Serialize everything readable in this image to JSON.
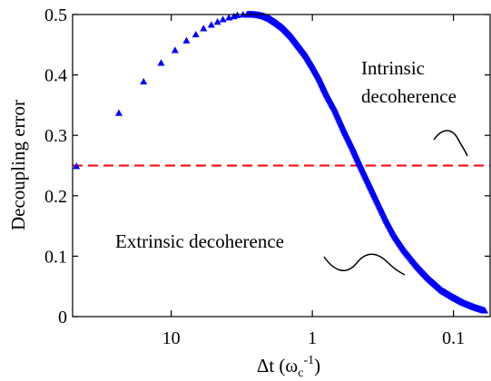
{
  "chart_data": {
    "type": "scatter",
    "xlabel": "Δt (ω",
    "xlabel_sub": "c",
    "xlabel_sup": "-1",
    "xlabel_close": ")",
    "ylabel": "Decoupling error",
    "x_scale": "log-reversed",
    "xlim": [
      50,
      0.055
    ],
    "ylim": [
      0,
      0.5
    ],
    "x_ticks": [
      {
        "value": 10,
        "label": "10"
      },
      {
        "value": 1,
        "label": "1"
      },
      {
        "value": 0.1,
        "label": "0.1"
      }
    ],
    "y_ticks": [
      {
        "value": 0,
        "label": "0"
      },
      {
        "value": 0.1,
        "label": "0.1"
      },
      {
        "value": 0.2,
        "label": "0.2"
      },
      {
        "value": 0.3,
        "label": "0.3"
      },
      {
        "value": 0.4,
        "label": "0.4"
      },
      {
        "value": 0.5,
        "label": "0.5"
      }
    ],
    "series": [
      {
        "marker": "triangle",
        "color": "#0000ff",
        "x": [
          47,
          23.5,
          15.7,
          11.8,
          9.4,
          7.8,
          6.7,
          5.9,
          5.2,
          4.7,
          4.3,
          3.9,
          3.6,
          3.4,
          3.1,
          2.9,
          2.75,
          2.6,
          2.4,
          2.2,
          2.0,
          1.8,
          1.6,
          1.4,
          1.25,
          1.1,
          1.0,
          0.9,
          0.8,
          0.7,
          0.6,
          0.52,
          0.46,
          0.4,
          0.35,
          0.3,
          0.26,
          0.22,
          0.18,
          0.15,
          0.12,
          0.1,
          0.085,
          0.07,
          0.06
        ],
        "y": [
          0.249,
          0.337,
          0.389,
          0.42,
          0.441,
          0.457,
          0.467,
          0.477,
          0.483,
          0.488,
          0.492,
          0.495,
          0.497,
          0.499,
          0.5,
          0.5,
          0.5,
          0.5,
          0.499,
          0.497,
          0.493,
          0.486,
          0.477,
          0.463,
          0.448,
          0.431,
          0.415,
          0.396,
          0.37,
          0.345,
          0.31,
          0.28,
          0.252,
          0.222,
          0.193,
          0.16,
          0.133,
          0.108,
          0.083,
          0.063,
          0.043,
          0.032,
          0.023,
          0.015,
          0.01
        ]
      }
    ],
    "reference_line": {
      "y": 0.25,
      "color": "#ff0000",
      "style": "dashed"
    },
    "annotations": {
      "intrinsic_line1": "Intrinsic",
      "intrinsic_line2": "decoherence",
      "extrinsic": "Extrinsic decoherence"
    }
  }
}
